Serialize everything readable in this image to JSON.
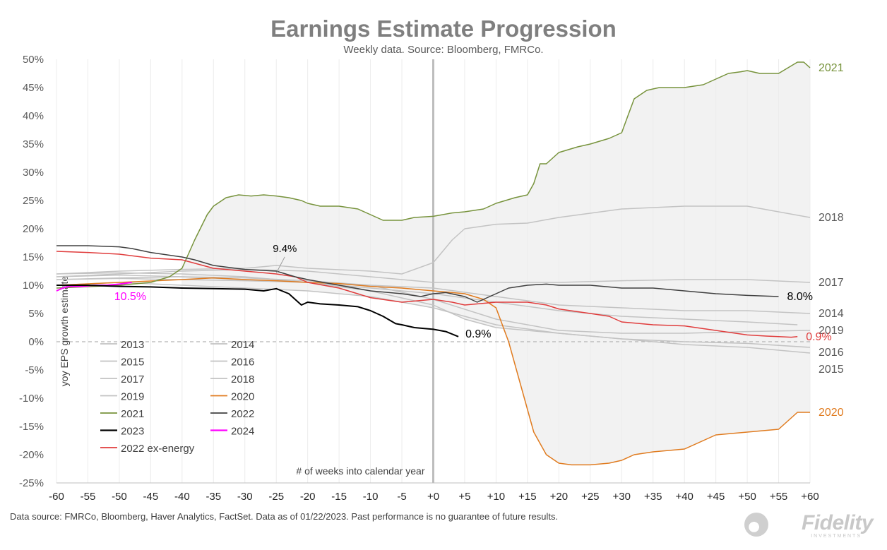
{
  "title": "Earnings Estimate Progression",
  "subtitle": "Weekly data.  Source: Bloomberg, FMRCo.",
  "footer": "Data source: FMRCo, Bloomberg, Haver Analytics, FactSet. Data as of 01/22/2023. Past performance is no guarantee of future results.",
  "logo": {
    "text": "Fidelity",
    "sub": "INVESTMENTS"
  },
  "colors": {
    "grey": "#c3c3c3",
    "y2020": "#e07b1f",
    "y2021": "#77933c",
    "y2022": "#404040",
    "y2023": "#000000",
    "y2024": "#ff00ff",
    "ex_energy": "#e03c3c",
    "band": "#f2f2f2"
  },
  "chart_data": {
    "type": "line",
    "title": "Earnings Estimate Progression",
    "subtitle": "Weekly data.  Source: Bloomberg, FMRCo.",
    "ylabel": "yoy EPS growth estimate",
    "xlabel_annotation": "# of weeks into calendar year",
    "xlim": [
      -60,
      60
    ],
    "ylim": [
      -25,
      50
    ],
    "x_ticks": [
      -60,
      -55,
      -50,
      -45,
      -40,
      -35,
      -30,
      -25,
      -20,
      -15,
      -10,
      -5,
      0,
      5,
      10,
      15,
      20,
      25,
      30,
      35,
      40,
      45,
      50,
      55,
      60
    ],
    "x_tick_labels": [
      "-60",
      "-55",
      "-50",
      "-45",
      "-40",
      "-35",
      "-30",
      "-25",
      "-20",
      "-15",
      "-10",
      "-5",
      "+0",
      "+5",
      "+10",
      "+15",
      "+20",
      "+25",
      "+30",
      "+35",
      "+40",
      "+45",
      "+50",
      "+55",
      "+60"
    ],
    "y_ticks": [
      50,
      45,
      40,
      35,
      30,
      25,
      20,
      15,
      10,
      5,
      0,
      -5,
      -10,
      -15,
      -20,
      -25
    ],
    "y_tick_labels": [
      "50%",
      "45%",
      "40%",
      "35%",
      "30%",
      "25%",
      "20%",
      "15%",
      "10%",
      "5%",
      "0%",
      "-5%",
      "-10%",
      "-15%",
      "-20%",
      "-25%"
    ],
    "grid": "vertical",
    "legend_position": "bottom-left",
    "series": [
      {
        "name": "2013",
        "color": "#c3c3c3",
        "width": 1.5,
        "x": [
          -60,
          -50,
          -40,
          -30,
          -20,
          -10,
          0,
          10,
          20,
          30,
          40,
          50,
          58
        ],
        "y": [
          11.5,
          11.8,
          11.5,
          11.0,
          10.5,
          9.5,
          8.5,
          7.0,
          5.5,
          4.5,
          4.0,
          3.5,
          3.0
        ]
      },
      {
        "name": "2014",
        "color": "#c3c3c3",
        "width": 1.5,
        "x": [
          -60,
          -50,
          -40,
          -30,
          -20,
          -10,
          0,
          10,
          20,
          30,
          40,
          50,
          60
        ],
        "y": [
          11.0,
          11.2,
          11.0,
          10.8,
          10.5,
          10.0,
          9.5,
          8.0,
          6.5,
          6.0,
          5.5,
          5.5,
          5.0
        ]
      },
      {
        "name": "2015",
        "color": "#c3c3c3",
        "width": 1.5,
        "x": [
          -60,
          -50,
          -40,
          -30,
          -20,
          -10,
          0,
          5,
          10,
          20,
          30,
          40,
          50,
          60
        ],
        "y": [
          12.0,
          12.2,
          12.0,
          11.5,
          10.5,
          9.0,
          6.5,
          4.0,
          2.5,
          1.5,
          0.5,
          -0.5,
          -1.0,
          -2.0
        ]
      },
      {
        "name": "2016",
        "color": "#c3c3c3",
        "width": 1.5,
        "x": [
          -60,
          -50,
          -40,
          -30,
          -20,
          -10,
          0,
          10,
          20,
          30,
          40,
          50,
          60
        ],
        "y": [
          10.0,
          10.5,
          10.0,
          9.5,
          9.0,
          8.0,
          6.0,
          3.0,
          1.5,
          0.5,
          0.0,
          -0.3,
          -1.0
        ]
      },
      {
        "name": "2017",
        "color": "#c3c3c3",
        "width": 1.5,
        "x": [
          -60,
          -50,
          -40,
          -30,
          -20,
          -10,
          0,
          10,
          20,
          30,
          40,
          50,
          60
        ],
        "y": [
          11.5,
          12.0,
          12.5,
          12.8,
          12.5,
          11.5,
          10.5,
          10.5,
          10.5,
          10.8,
          11.0,
          11.0,
          10.5
        ]
      },
      {
        "name": "2018",
        "color": "#c3c3c3",
        "width": 1.5,
        "x": [
          -60,
          -50,
          -40,
          -30,
          -25,
          -20,
          -10,
          -5,
          0,
          3,
          5,
          10,
          15,
          20,
          30,
          40,
          50,
          60
        ],
        "y": [
          12.0,
          12.5,
          12.8,
          13.0,
          13.5,
          13.0,
          12.5,
          12.0,
          14.0,
          18.0,
          20.0,
          20.8,
          21.0,
          22.0,
          23.5,
          24.0,
          24.0,
          22.0
        ]
      },
      {
        "name": "2019",
        "color": "#c3c3c3",
        "width": 1.5,
        "x": [
          -60,
          -50,
          -40,
          -30,
          -20,
          -10,
          0,
          10,
          20,
          30,
          40,
          50,
          60
        ],
        "y": [
          11.0,
          11.3,
          11.5,
          11.3,
          10.8,
          10.0,
          7.5,
          4.0,
          2.0,
          1.5,
          1.5,
          1.8,
          2.0
        ]
      },
      {
        "name": "2020",
        "color": "#e07b1f",
        "width": 1.5,
        "x": [
          -60,
          -50,
          -40,
          -35,
          -30,
          -25,
          -20,
          -15,
          -10,
          -5,
          0,
          5,
          8,
          10,
          12,
          14,
          16,
          18,
          20,
          22,
          25,
          28,
          30,
          32,
          35,
          40,
          45,
          50,
          55,
          58,
          60
        ],
        "y": [
          10.0,
          10.5,
          11.0,
          11.3,
          11.0,
          10.8,
          10.5,
          10.3,
          9.8,
          9.5,
          9.0,
          8.5,
          7.5,
          6.0,
          0.0,
          -8.0,
          -16.0,
          -20.0,
          -21.5,
          -21.8,
          -21.8,
          -21.5,
          -21.0,
          -20.0,
          -19.5,
          -19.0,
          -16.5,
          -16.0,
          -15.5,
          -12.5,
          -12.5
        ]
      },
      {
        "name": "2021",
        "color": "#77933c",
        "width": 1.5,
        "x": [
          -60,
          -50,
          -45,
          -42,
          -40,
          -38,
          -36,
          -35,
          -33,
          -31,
          -29,
          -27,
          -25,
          -23,
          -21,
          -20,
          -18,
          -15,
          -12,
          -10,
          -8,
          -5,
          -3,
          0,
          3,
          5,
          8,
          10,
          13,
          15,
          16,
          17,
          18,
          20,
          23,
          25,
          28,
          30,
          31,
          32,
          34,
          36,
          40,
          43,
          45,
          47,
          49,
          50,
          52,
          55,
          58,
          59,
          60
        ],
        "y": [
          9.5,
          10.0,
          10.5,
          11.5,
          13.0,
          18.0,
          22.5,
          24.0,
          25.5,
          26.0,
          25.8,
          26.0,
          25.8,
          25.5,
          25.0,
          24.5,
          24.0,
          24.0,
          23.5,
          22.5,
          21.5,
          21.5,
          22.0,
          22.2,
          22.8,
          23.0,
          23.5,
          24.5,
          25.5,
          26.0,
          28.0,
          31.5,
          31.5,
          33.5,
          34.5,
          35.0,
          36.0,
          37.0,
          40.0,
          43.0,
          44.5,
          45.0,
          45.0,
          45.5,
          46.5,
          47.5,
          47.8,
          48.0,
          47.5,
          47.5,
          49.5,
          49.5,
          48.5
        ]
      },
      {
        "name": "2022",
        "color": "#404040",
        "width": 1.5,
        "x": [
          -60,
          -55,
          -50,
          -48,
          -45,
          -40,
          -38,
          -35,
          -30,
          -25,
          -22,
          -20,
          -15,
          -10,
          -5,
          -2,
          0,
          2,
          5,
          7,
          8,
          10,
          12,
          15,
          18,
          20,
          25,
          30,
          35,
          40,
          45,
          50,
          55
        ],
        "y": [
          17.0,
          17.0,
          16.8,
          16.5,
          15.8,
          15.0,
          14.5,
          13.5,
          12.8,
          12.5,
          11.5,
          11.0,
          10.0,
          9.0,
          8.5,
          8.0,
          8.5,
          8.7,
          8.0,
          7.0,
          7.5,
          8.5,
          9.5,
          10.0,
          10.2,
          10.0,
          10.0,
          9.5,
          9.5,
          9.0,
          8.5,
          8.2,
          8.0
        ]
      },
      {
        "name": "2023",
        "color": "#000000",
        "width": 2,
        "x": [
          -60,
          -55,
          -50,
          -45,
          -40,
          -35,
          -30,
          -27,
          -25,
          -23,
          -22,
          -21,
          -20,
          -18,
          -15,
          -12,
          -10,
          -8,
          -6,
          -5,
          -3,
          0,
          2,
          4
        ],
        "y": [
          10.0,
          10.0,
          9.8,
          9.7,
          9.5,
          9.4,
          9.3,
          9.0,
          9.4,
          8.5,
          7.5,
          6.5,
          7.0,
          6.7,
          6.5,
          6.2,
          5.5,
          4.5,
          3.2,
          3.0,
          2.5,
          2.2,
          1.8,
          0.9
        ]
      },
      {
        "name": "2024",
        "color": "#ff00ff",
        "width": 2,
        "x": [
          -60,
          -59,
          -58,
          -56,
          -54,
          -52,
          -50,
          -48
        ],
        "y": [
          9.0,
          9.5,
          9.8,
          9.8,
          10.0,
          10.0,
          10.2,
          10.5
        ]
      },
      {
        "name": "2022 ex-energy",
        "color": "#e03c3c",
        "width": 1.5,
        "x": [
          -60,
          -55,
          -50,
          -45,
          -40,
          -35,
          -30,
          -25,
          -22,
          -20,
          -15,
          -10,
          -5,
          0,
          3,
          5,
          8,
          10,
          15,
          18,
          20,
          25,
          28,
          30,
          35,
          40,
          45,
          50,
          53,
          55,
          57,
          58
        ],
        "y": [
          16.0,
          15.8,
          15.5,
          14.8,
          14.5,
          13.0,
          12.5,
          12.0,
          11.5,
          10.5,
          9.5,
          7.8,
          7.0,
          7.5,
          7.0,
          6.5,
          6.8,
          7.0,
          7.0,
          6.5,
          5.8,
          5.0,
          4.5,
          3.5,
          3.0,
          2.8,
          2.0,
          1.2,
          1.0,
          0.9,
          0.8,
          0.9
        ]
      }
    ],
    "end_labels": [
      {
        "text": "2021",
        "series": "2021",
        "x": 60,
        "y": 48.5
      },
      {
        "text": "2018",
        "series": "2018",
        "x": 60,
        "y": 22.0
      },
      {
        "text": "2017",
        "series": "2017",
        "x": 60,
        "y": 10.5
      },
      {
        "text": "8.0%",
        "series": "2022",
        "x": 55,
        "y": 8.0
      },
      {
        "text": "2014",
        "series": "2014",
        "x": 60,
        "y": 5.0
      },
      {
        "text": "2019",
        "series": "2019",
        "x": 60,
        "y": 2.0
      },
      {
        "text": "0.9%",
        "series": "2022 ex-energy",
        "x": 58,
        "y": 0.9
      },
      {
        "text": "2016",
        "series": "2016",
        "x": 60,
        "y": -1.0
      },
      {
        "text": "2015",
        "series": "2015",
        "x": 60,
        "y": -2.0
      },
      {
        "text": "2020",
        "series": "2020",
        "x": 60,
        "y": -12.5
      },
      {
        "text": "0.9%",
        "series": "2023",
        "x": 4,
        "y": 0.9
      },
      {
        "text": "10.5%",
        "series": "2024",
        "x": -48,
        "y": 10.5
      }
    ],
    "callout": {
      "text": "9.4%",
      "series": "2023",
      "x": -25,
      "y": 9.4
    }
  }
}
